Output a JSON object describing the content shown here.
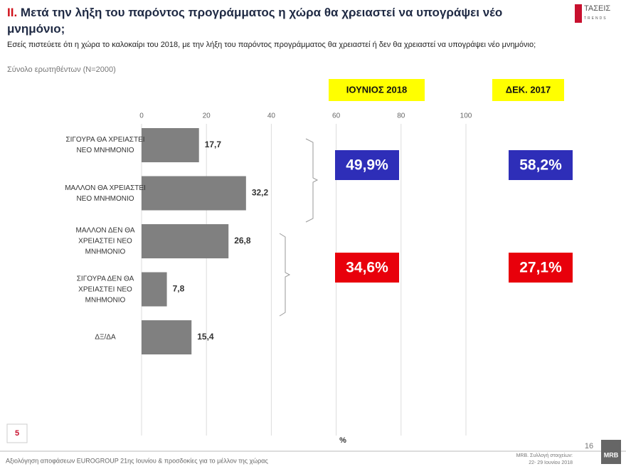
{
  "header": {
    "number": "II.",
    "title": "Μετά την λήξη του παρόντος προγράμματος η χώρα θα χρειαστεί να υπογράψει νέο μνημόνιο;",
    "question": "Εσείς πιστεύετε ότι η χώρα το καλοκαίρι του 2018, με την λήξη του παρόντος προγράμματος θα χρειαστεί ή δεν θα χρειαστεί να υπογράψει νέο μνημόνιο;",
    "sample": "Σύνολο ερωτηθέντων (N=2000)",
    "logo": "ΤΑΣΕΙΣ",
    "logo_sub": "TRENDS"
  },
  "chart_data": {
    "type": "hbar",
    "categories": [
      "ΣΙΓΟΥΡΑ ΘΑ ΧΡΕΙΑΣΤΕΙ ΝΕΟ ΜΝΗΜΟΝΙΟ",
      "ΜΑΛΛΟΝ ΘΑ ΧΡΕΙΑΣΤΕΙ ΝΕΟ ΜΝΗΜΟΝΙΟ",
      "ΜΑΛΛΟΝ ΔΕΝ ΘΑ ΧΡΕΙΑΣΤΕΙ ΝΕΟ ΜΝΗΜΟΝΙΟ",
      "ΣΙΓΟΥΡΑ ΔΕΝ ΘΑ ΧΡΕΙΑΣΤΕΙ ΝΕΟ ΜΝΗΜΟΝΙΟ",
      "ΔΞ/ΔΑ"
    ],
    "values": [
      17.7,
      32.2,
      26.8,
      7.8,
      15.4
    ],
    "value_labels": [
      "17,7",
      "32,2",
      "26,8",
      "7,8",
      "15,4"
    ],
    "color": "#808080",
    "xlim": [
      0,
      100
    ],
    "xticks": [
      0,
      20,
      40,
      60,
      80,
      100
    ],
    "grid": true,
    "xlabel": "%",
    "summary": [
      {
        "name": "ΙΟΥΝΙΟΣ 2018",
        "values": [
          49.9,
          34.6
        ],
        "value_labels": [
          "49,9%",
          "34,6%"
        ]
      },
      {
        "name": "ΔΕΚ. 2017",
        "values": [
          58.2,
          27.1
        ],
        "value_labels": [
          "58,2%",
          "27,1%"
        ]
      }
    ],
    "summary_colors": [
      "#2e2eb8",
      "#e8000b"
    ]
  },
  "footer": {
    "slide": "5",
    "text": "Αξιολόγηση αποφάσεων EUROGROUP 21ης Ιουνίου & προσδοκίες για το μέλλον της χώρας",
    "source_1": "MRB. Συλλογή στοιχείων:",
    "source_2": "22- 29 Ιουνίου 2018",
    "page": "16",
    "logo": "MRB"
  }
}
